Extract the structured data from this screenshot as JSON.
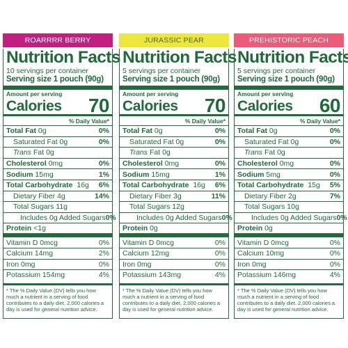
{
  "panels": [
    {
      "name": "ROARRRR BERRY",
      "color": "#c2207f",
      "title": "Nutrition Facts",
      "servings": "10 servings per container",
      "serving_size_label": "Serving size",
      "serving_size_value": "1 pouch (90g)",
      "amount_per_serving": "Amount per serving",
      "calories_label": "Calories",
      "calories": "70",
      "dv_header": "% Daily Value*",
      "total_fat": "0g",
      "total_fat_pct": "0%",
      "sat_fat": "Saturated Fat 0g",
      "sat_fat_pct": "0%",
      "trans_fat_word": "Trans",
      "trans_fat_rest": " Fat 0g",
      "cholesterol": "0mg",
      "cholesterol_pct": "0%",
      "sodium": "15mg",
      "sodium_pct": "1%",
      "carb": "16g",
      "carb_pct": "6%",
      "fiber": "Dietary Fiber 4g",
      "fiber_pct": "14%",
      "sugars": "Total Sugars 11g",
      "added_sugars": "Includes 0g Added Sugars",
      "added_sugars_pct": "0%",
      "protein": "<1g",
      "vit_d": "Vitamin D 0mcg",
      "vit_d_pct": "0%",
      "calcium": "Calcium 14mg",
      "calcium_pct": "2%",
      "iron": "Iron 0mg",
      "iron_pct": "0%",
      "potassium": "Potassium 154mg",
      "potassium_pct": "4%",
      "footnote": "* The % Daily Value (DV) tells you how much a nutrient in a serving of food contributes to a daily diet. 2,000 calories a day is used for general nutrition advice."
    },
    {
      "name": "JURASSIC PEAR",
      "color": "#ece73a",
      "title": "Nutrition Facts",
      "servings": "5 servings per container",
      "serving_size_label": "Serving size",
      "serving_size_value": "1 pouch (90g)",
      "amount_per_serving": "Amount per serving",
      "calories_label": "Calories",
      "calories": "70",
      "dv_header": "% Daily Value*",
      "total_fat": "0g",
      "total_fat_pct": "0%",
      "sat_fat": "Saturated Fat 0g",
      "sat_fat_pct": "0%",
      "trans_fat_word": "Trans",
      "trans_fat_rest": " Fat 0g",
      "cholesterol": "0mg",
      "cholesterol_pct": "0%",
      "sodium": "15mg",
      "sodium_pct": "1%",
      "carb": "16g",
      "carb_pct": "6%",
      "fiber": "Dietary Fiber 3g",
      "fiber_pct": "11%",
      "sugars": "Total Sugars 12g",
      "added_sugars": "Includes 0g Added Sugars",
      "added_sugars_pct": "0%",
      "protein": "0g",
      "vit_d": "Vitamin D 0mcg",
      "vit_d_pct": "0%",
      "calcium": "Calcium 12mg",
      "calcium_pct": "0%",
      "iron": "Iron 0mg",
      "iron_pct": "0%",
      "potassium": "Potassium 143mg",
      "potassium_pct": "4%",
      "footnote": "* The % Daily Value (DV) tells you how much a nutrient in a serving of food contributes to a daily diet. 2,000 calories a day is used for general nutrition advice."
    },
    {
      "name": "PREHISTORIC PEACH",
      "color": "#ee5b78",
      "title": "Nutrition Facts",
      "servings": "5 servings per container",
      "serving_size_label": "Serving size",
      "serving_size_value": "1 pouch (90g)",
      "amount_per_serving": "Amount per serving",
      "calories_label": "Calories",
      "calories": "60",
      "dv_header": "% Daily Value*",
      "total_fat": "0g",
      "total_fat_pct": "0%",
      "sat_fat": "Saturated Fat 0g",
      "sat_fat_pct": "0%",
      "trans_fat_word": "Trans",
      "trans_fat_rest": " Fat 0g",
      "cholesterol": "0mg",
      "cholesterol_pct": "0%",
      "sodium": "5mg",
      "sodium_pct": "0%",
      "carb": "15g",
      "carb_pct": "5%",
      "fiber": "Dietary Fiber 2g",
      "fiber_pct": "7%",
      "sugars": "Total Sugars 10g",
      "added_sugars": "Includes 0g Added Sugars",
      "added_sugars_pct": "0%",
      "protein": "0g",
      "vit_d": "Vitamin D 0mcg",
      "vit_d_pct": "0%",
      "calcium": "Calcium 10mg",
      "calcium_pct": "0%",
      "iron": "Iron 0mg",
      "iron_pct": "0%",
      "potassium": "Potassium 146mg",
      "potassium_pct": "4%",
      "footnote": "* The % Daily Value (DV) tells you how much a nutrient in a serving of food contributes to a daily diet. 2,000 calories a day is used for general nutrition advice."
    }
  ],
  "labels": {
    "total_fat": "Total Fat",
    "cholesterol": "Cholesterol",
    "sodium": "Sodium",
    "carb": "Total Carbohydrate",
    "protein": "Protein"
  }
}
